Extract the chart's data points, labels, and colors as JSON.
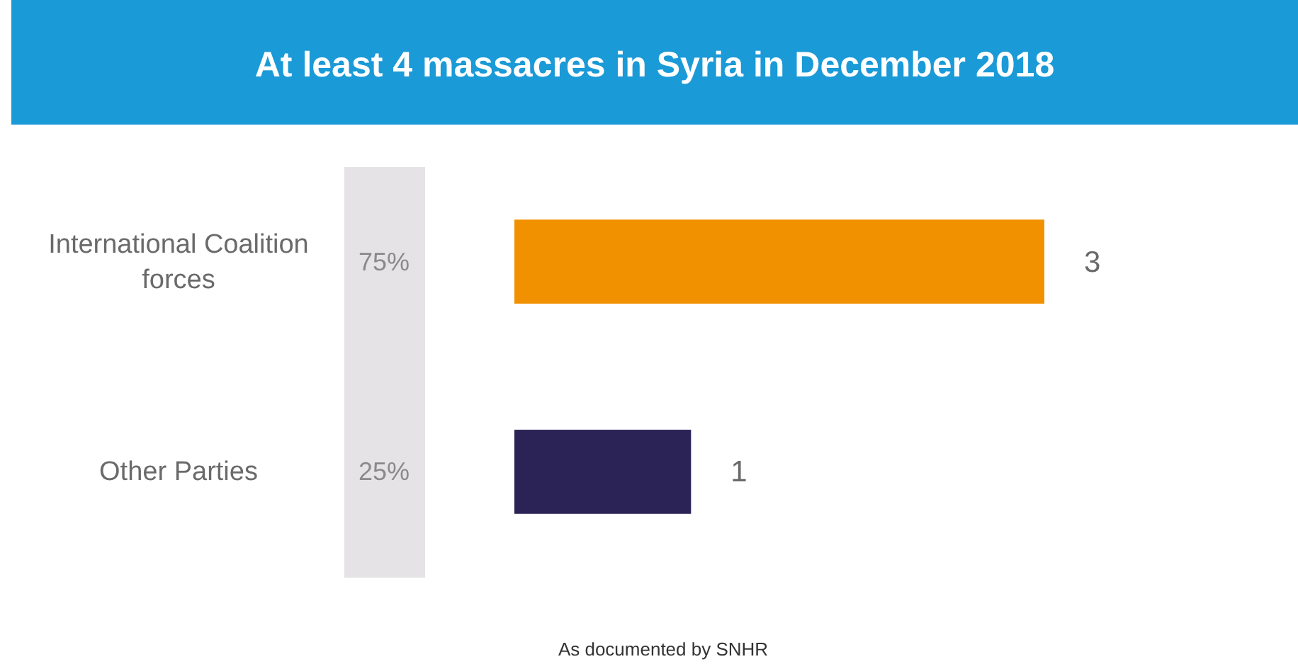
{
  "chart_data": {
    "type": "bar",
    "orientation": "horizontal",
    "title": "At least 4 massacres in Syria in December 2018",
    "categories": [
      "International Coalition forces",
      "Other Parties"
    ],
    "values": [
      3,
      1
    ],
    "colors": [
      "#f29100",
      "#2b2356"
    ],
    "data_labels": true,
    "annotations": [
      "75%",
      "25%",
      "As documented by SNHR"
    ]
  }
}
